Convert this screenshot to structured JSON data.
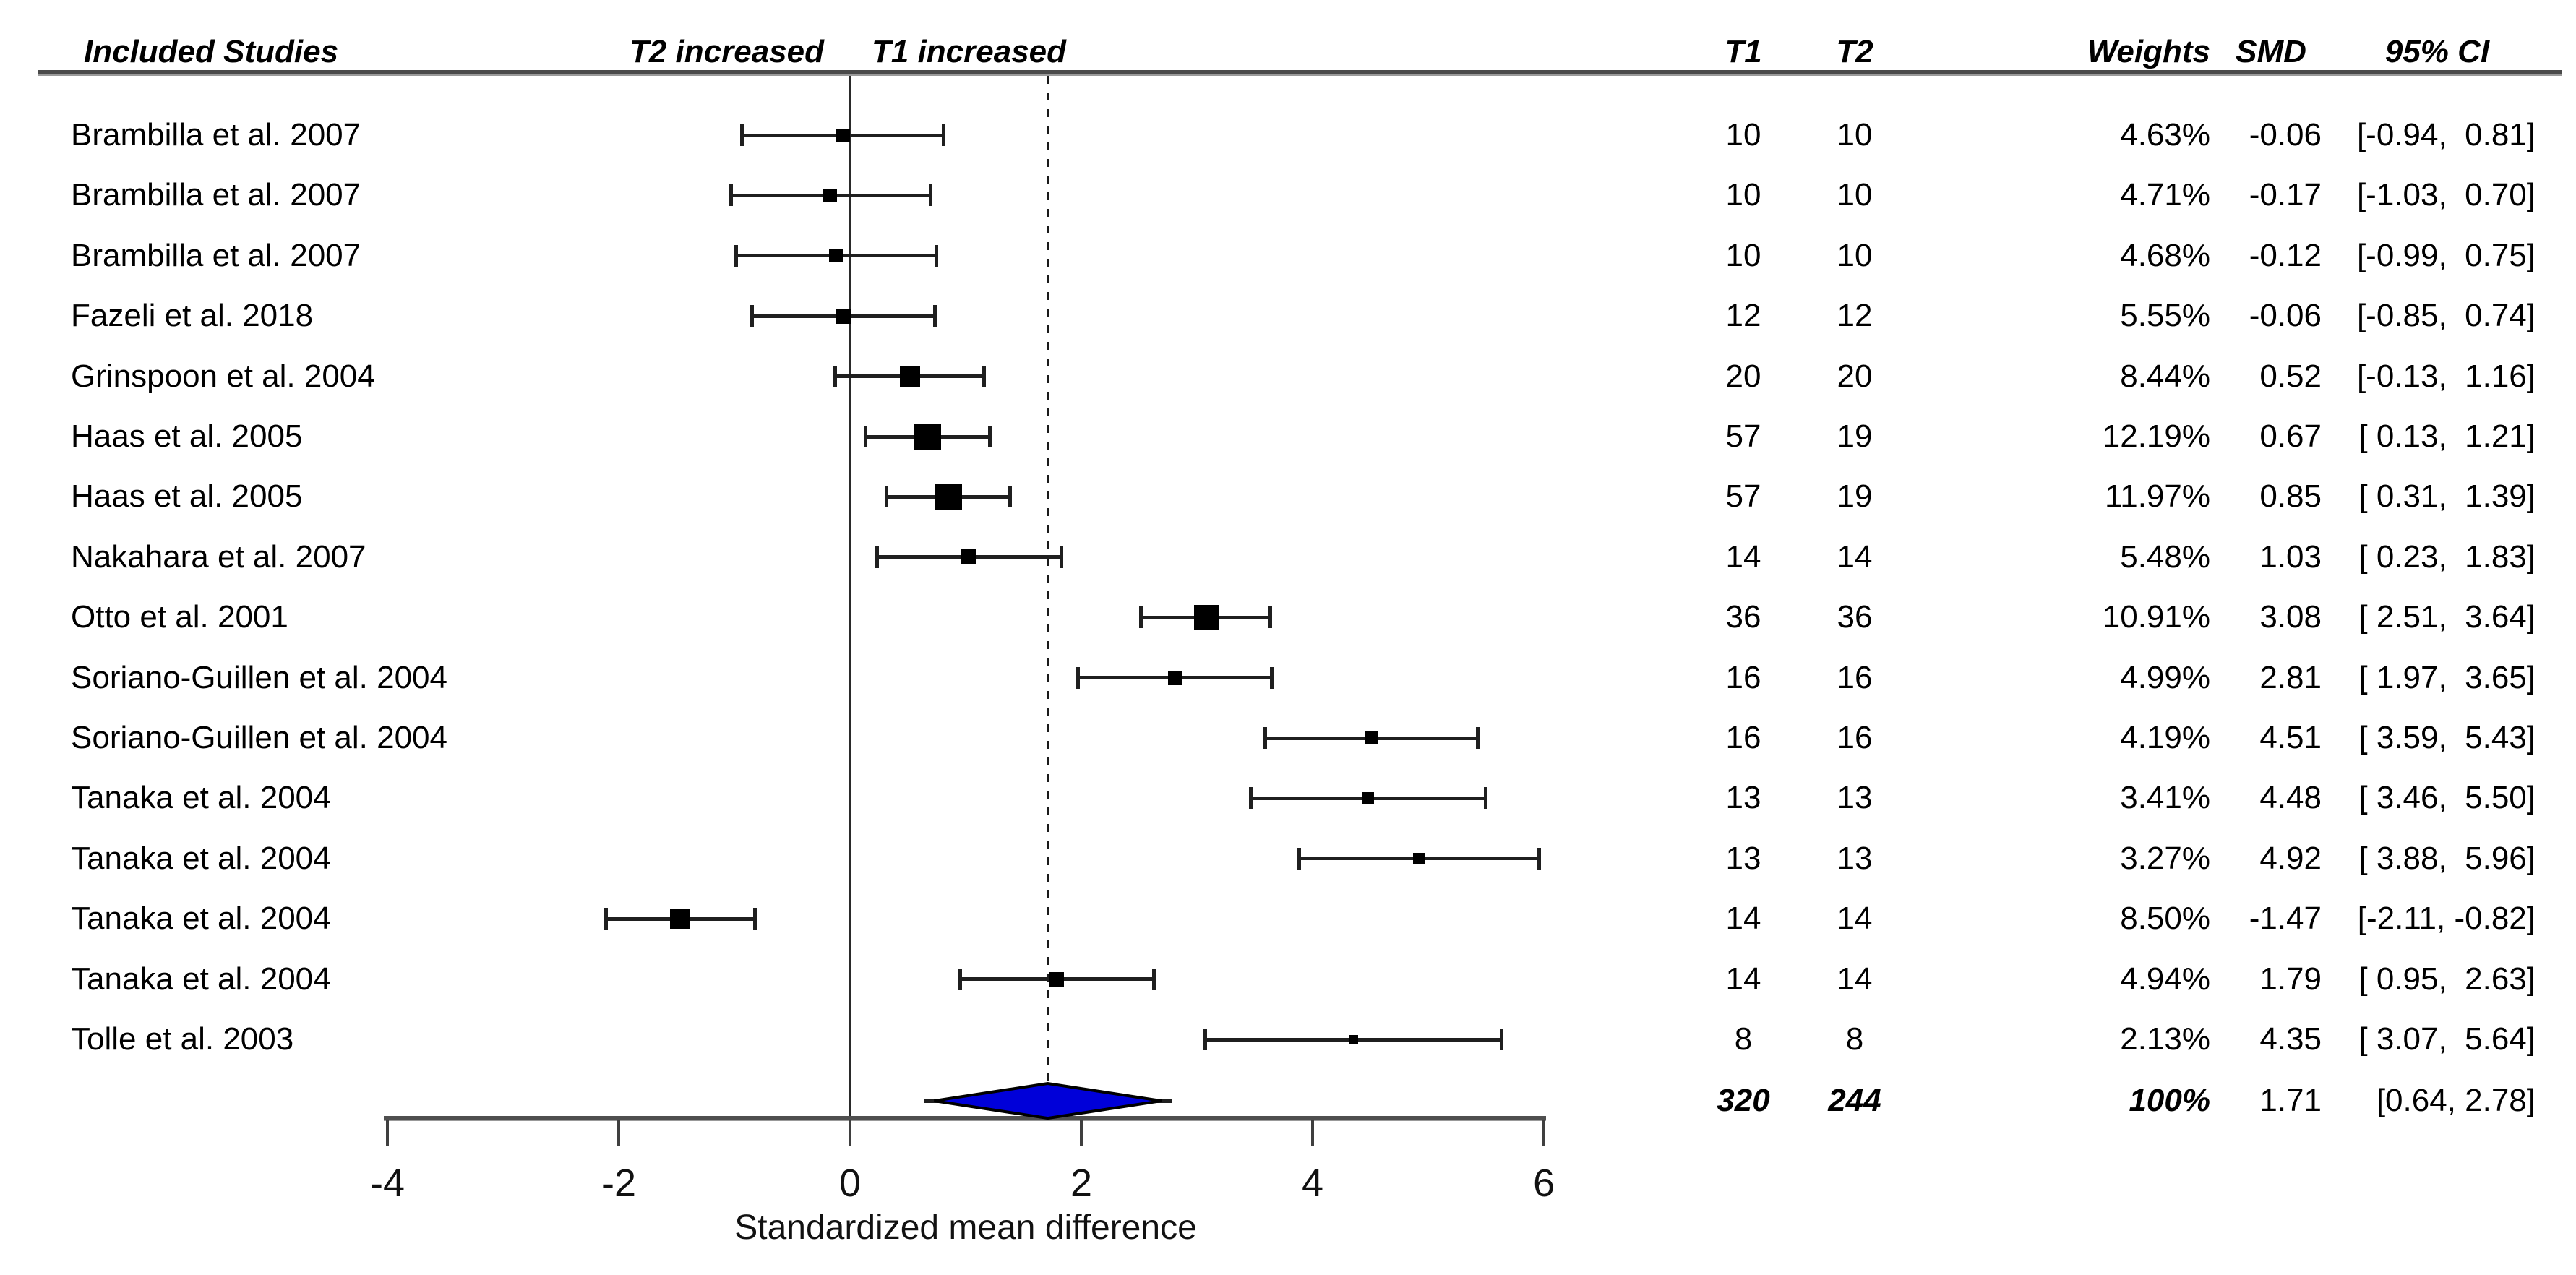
{
  "header": {
    "included_studies": "Included Studies",
    "t2_increased": "T2 increased",
    "t1_increased": "T1 increased",
    "t1": "T1",
    "t2": "T2",
    "weights": "Weights",
    "smd": "SMD",
    "ci": "95% CI"
  },
  "chart_data": {
    "type": "forest",
    "xlabel": "Standardized mean difference",
    "x_tick_labels": [
      "-4",
      "-2",
      "0",
      "2",
      "4",
      "6"
    ],
    "x_tick_values": [
      -4,
      -2,
      0,
      2,
      4,
      6
    ],
    "xlim": [
      -4,
      6
    ],
    "reference_line_x": 0,
    "pooled_line_x": 1.71,
    "marker_color": "#000000",
    "diamond_fill": "#0000d9",
    "studies": [
      {
        "label": "Brambilla et al. 2007",
        "t1": "10",
        "t2": "10",
        "weight_text": "4.63%",
        "weight_pct": 4.63,
        "smd": -0.06,
        "smd_text": "-0.06",
        "ci_lo": -0.94,
        "ci_hi": 0.81,
        "ci_text": "[-0.94,  0.81]"
      },
      {
        "label": "Brambilla et al. 2007",
        "t1": "10",
        "t2": "10",
        "weight_text": "4.71%",
        "weight_pct": 4.71,
        "smd": -0.17,
        "smd_text": "-0.17",
        "ci_lo": -1.03,
        "ci_hi": 0.7,
        "ci_text": "[-1.03,  0.70]"
      },
      {
        "label": "Brambilla et al. 2007",
        "t1": "10",
        "t2": "10",
        "weight_text": "4.68%",
        "weight_pct": 4.68,
        "smd": -0.12,
        "smd_text": "-0.12",
        "ci_lo": -0.99,
        "ci_hi": 0.75,
        "ci_text": "[-0.99,  0.75]"
      },
      {
        "label": "Fazeli et al. 2018",
        "t1": "12",
        "t2": "12",
        "weight_text": "5.55%",
        "weight_pct": 5.55,
        "smd": -0.06,
        "smd_text": "-0.06",
        "ci_lo": -0.85,
        "ci_hi": 0.74,
        "ci_text": "[-0.85,  0.74]"
      },
      {
        "label": "Grinspoon et al. 2004",
        "t1": "20",
        "t2": "20",
        "weight_text": "8.44%",
        "weight_pct": 8.44,
        "smd": 0.52,
        "smd_text": "0.52",
        "ci_lo": -0.13,
        "ci_hi": 1.16,
        "ci_text": "[-0.13,  1.16]"
      },
      {
        "label": "Haas et al. 2005",
        "t1": "57",
        "t2": "19",
        "weight_text": "12.19%",
        "weight_pct": 12.19,
        "smd": 0.67,
        "smd_text": "0.67",
        "ci_lo": 0.13,
        "ci_hi": 1.21,
        "ci_text": "[ 0.13,  1.21]"
      },
      {
        "label": "Haas et al. 2005",
        "t1": "57",
        "t2": "19",
        "weight_text": "11.97%",
        "weight_pct": 11.97,
        "smd": 0.85,
        "smd_text": "0.85",
        "ci_lo": 0.31,
        "ci_hi": 1.39,
        "ci_text": "[ 0.31,  1.39]"
      },
      {
        "label": "Nakahara et al. 2007",
        "t1": "14",
        "t2": "14",
        "weight_text": "5.48%",
        "weight_pct": 5.48,
        "smd": 1.03,
        "smd_text": "1.03",
        "ci_lo": 0.23,
        "ci_hi": 1.83,
        "ci_text": "[ 0.23,  1.83]"
      },
      {
        "label": "Otto et al. 2001",
        "t1": "36",
        "t2": "36",
        "weight_text": "10.91%",
        "weight_pct": 10.91,
        "smd": 3.08,
        "smd_text": "3.08",
        "ci_lo": 2.51,
        "ci_hi": 3.64,
        "ci_text": "[ 2.51,  3.64]"
      },
      {
        "label": "Soriano-Guillen et al. 2004",
        "t1": "16",
        "t2": "16",
        "weight_text": "4.99%",
        "weight_pct": 4.99,
        "smd": 2.81,
        "smd_text": "2.81",
        "ci_lo": 1.97,
        "ci_hi": 3.65,
        "ci_text": "[ 1.97,  3.65]"
      },
      {
        "label": "Soriano-Guillen et al. 2004",
        "t1": "16",
        "t2": "16",
        "weight_text": "4.19%",
        "weight_pct": 4.19,
        "smd": 4.51,
        "smd_text": "4.51",
        "ci_lo": 3.59,
        "ci_hi": 5.43,
        "ci_text": "[ 3.59,  5.43]"
      },
      {
        "label": "Tanaka et al. 2004",
        "t1": "13",
        "t2": "13",
        "weight_text": "3.41%",
        "weight_pct": 3.41,
        "smd": 4.48,
        "smd_text": "4.48",
        "ci_lo": 3.46,
        "ci_hi": 5.5,
        "ci_text": "[ 3.46,  5.50]"
      },
      {
        "label": "Tanaka et al. 2004",
        "t1": "13",
        "t2": "13",
        "weight_text": "3.27%",
        "weight_pct": 3.27,
        "smd": 4.92,
        "smd_text": "4.92",
        "ci_lo": 3.88,
        "ci_hi": 5.96,
        "ci_text": "[ 3.88,  5.96]"
      },
      {
        "label": "Tanaka et al. 2004",
        "t1": "14",
        "t2": "14",
        "weight_text": "8.50%",
        "weight_pct": 8.5,
        "smd": -1.47,
        "smd_text": "-1.47",
        "ci_lo": -2.11,
        "ci_hi": -0.82,
        "ci_text": "[-2.11, -0.82]"
      },
      {
        "label": "Tanaka et al. 2004",
        "t1": "14",
        "t2": "14",
        "weight_text": "4.94%",
        "weight_pct": 4.94,
        "smd": 1.79,
        "smd_text": "1.79",
        "ci_lo": 0.95,
        "ci_hi": 2.63,
        "ci_text": "[ 0.95,  2.63]"
      },
      {
        "label": "Tolle et al. 2003",
        "t1": "8",
        "t2": "8",
        "weight_text": "2.13%",
        "weight_pct": 2.13,
        "smd": 4.35,
        "smd_text": "4.35",
        "ci_lo": 3.07,
        "ci_hi": 5.64,
        "ci_text": "[ 3.07,  5.64]"
      }
    ],
    "total": {
      "t1": "320",
      "t2": "244",
      "weight_text": "100%",
      "smd": 1.71,
      "smd_text": "1.71",
      "ci_lo": 0.64,
      "ci_hi": 2.78,
      "ci_text": "[0.64, 2.78]"
    }
  }
}
